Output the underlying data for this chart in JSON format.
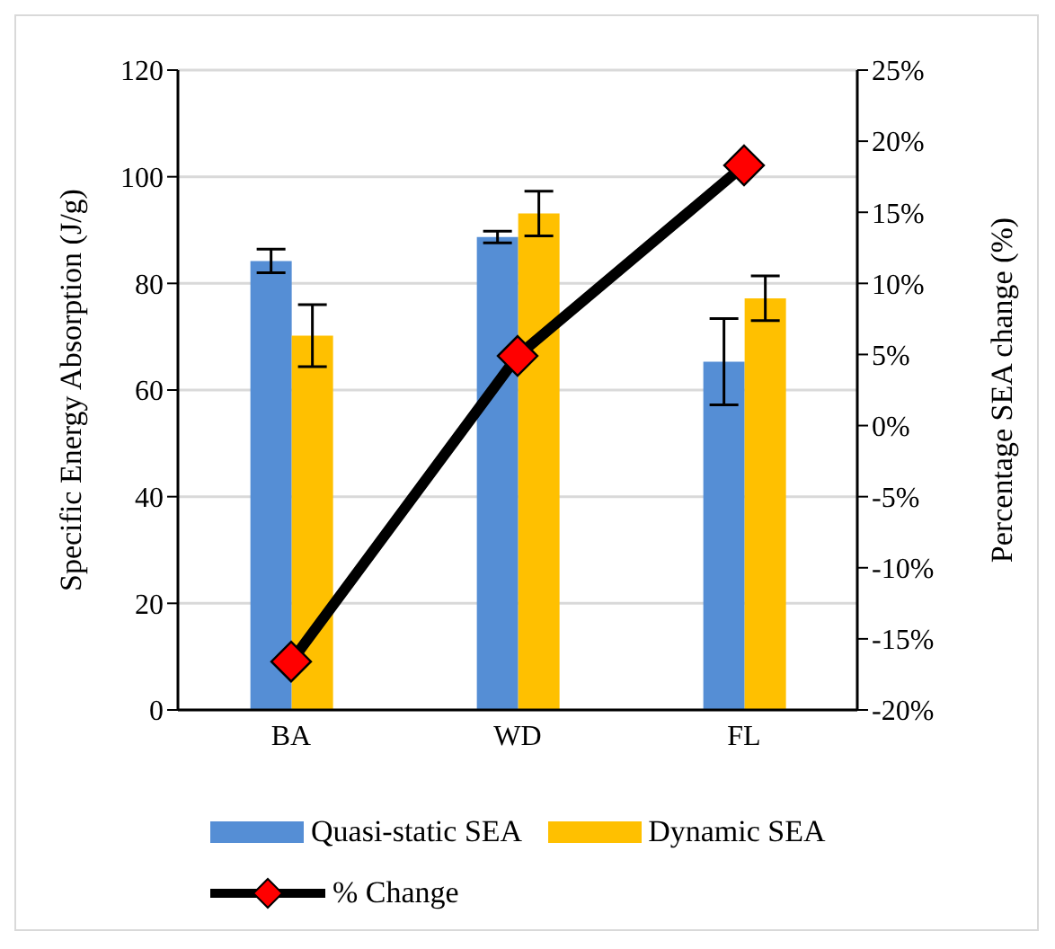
{
  "chart_data": {
    "type": "bar",
    "categories": [
      "BA",
      "WD",
      "FL"
    ],
    "ylabel": "Specific Energy Absorption  (J/g)",
    "y2label": "Percentage SEA change (%)",
    "series": [
      {
        "name": "Quasi-static SEA",
        "color": "#558ed5",
        "values": [
          84.2,
          88.7,
          65.3
        ],
        "errors": [
          2.2,
          1.1,
          8.1
        ]
      },
      {
        "name": "Dynamic SEA",
        "color": "#ffc000",
        "values": [
          70.2,
          93.1,
          77.2
        ],
        "errors": [
          5.8,
          4.2,
          4.2
        ]
      },
      {
        "name": "% Change",
        "type": "line",
        "axis": "y2",
        "color": "#000000",
        "marker": "diamond",
        "values": [
          -16.6,
          4.9,
          18.3
        ]
      }
    ],
    "ylim": [
      0,
      120
    ],
    "yticks": [
      0,
      20,
      40,
      60,
      80,
      100,
      120
    ],
    "y2lim": [
      -20,
      25
    ],
    "y2ticks": [
      {
        "value": -20,
        "label": "-20%"
      },
      {
        "value": -15,
        "label": "-15%"
      },
      {
        "value": -10,
        "label": "-10%"
      },
      {
        "value": -5,
        "label": "-5%"
      },
      {
        "value": 0,
        "label": "0%"
      },
      {
        "value": 5,
        "label": "5%"
      },
      {
        "value": 10,
        "label": "10%"
      },
      {
        "value": 15,
        "label": "15%"
      },
      {
        "value": 20,
        "label": "20%"
      },
      {
        "value": 25,
        "label": "25%"
      }
    ],
    "grid": "y",
    "legend": "bottom"
  }
}
